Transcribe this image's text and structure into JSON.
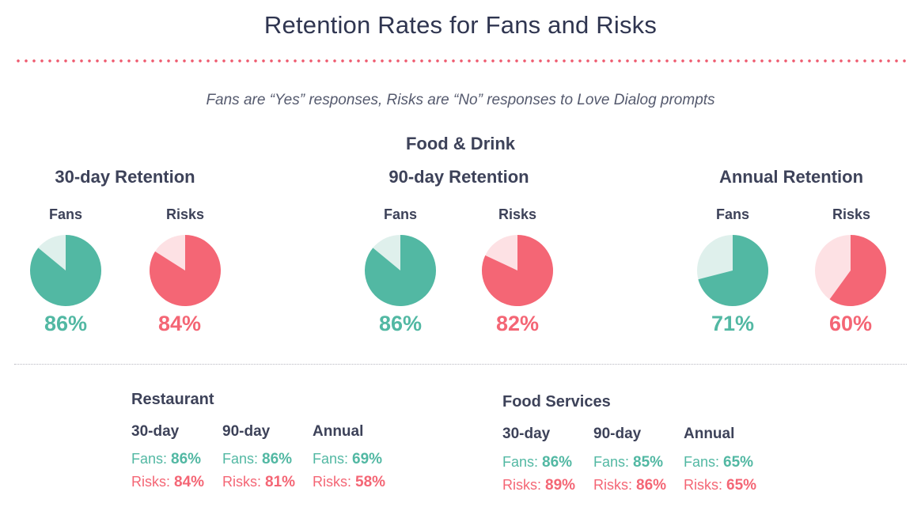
{
  "title": "Retention Rates for Fans and Risks",
  "subtitle": "Fans are “Yes” responses, Risks are “No” responses to Love Dialog prompts",
  "section_title": "Food & Drink",
  "colors": {
    "fans": "#52b8a3",
    "fans_light": "#dff0ec",
    "risks": "#f46675",
    "risks_light": "#fde1e4"
  },
  "chart_data": [
    {
      "type": "pie",
      "title": "30-day Retention",
      "series": [
        {
          "name": "Fans",
          "value": 86,
          "label": "86%"
        },
        {
          "name": "Risks",
          "value": 84,
          "label": "84%"
        }
      ]
    },
    {
      "type": "pie",
      "title": "90-day Retention",
      "series": [
        {
          "name": "Fans",
          "value": 86,
          "label": "86%"
        },
        {
          "name": "Risks",
          "value": 82,
          "label": "82%"
        }
      ]
    },
    {
      "type": "pie",
      "title": "Annual Retention",
      "series": [
        {
          "name": "Fans",
          "value": 71,
          "label": "71%"
        },
        {
          "name": "Risks",
          "value": 60,
          "label": "60%"
        }
      ]
    }
  ],
  "breakdowns": [
    {
      "title": "Restaurant",
      "columns": [
        {
          "head": "30-day",
          "fans": "86%",
          "risks": "84%"
        },
        {
          "head": "90-day",
          "fans": "86%",
          "risks": "81%"
        },
        {
          "head": "Annual",
          "fans": "69%",
          "risks": "58%"
        }
      ]
    },
    {
      "title": "Food Services",
      "columns": [
        {
          "head": "30-day",
          "fans": "86%",
          "risks": "89%"
        },
        {
          "head": "90-day",
          "fans": "85%",
          "risks": "86%"
        },
        {
          "head": "Annual",
          "fans": "65%",
          "risks": "65%"
        }
      ]
    }
  ],
  "labels": {
    "fans_prefix": "Fans:",
    "risks_prefix": "Risks:"
  }
}
